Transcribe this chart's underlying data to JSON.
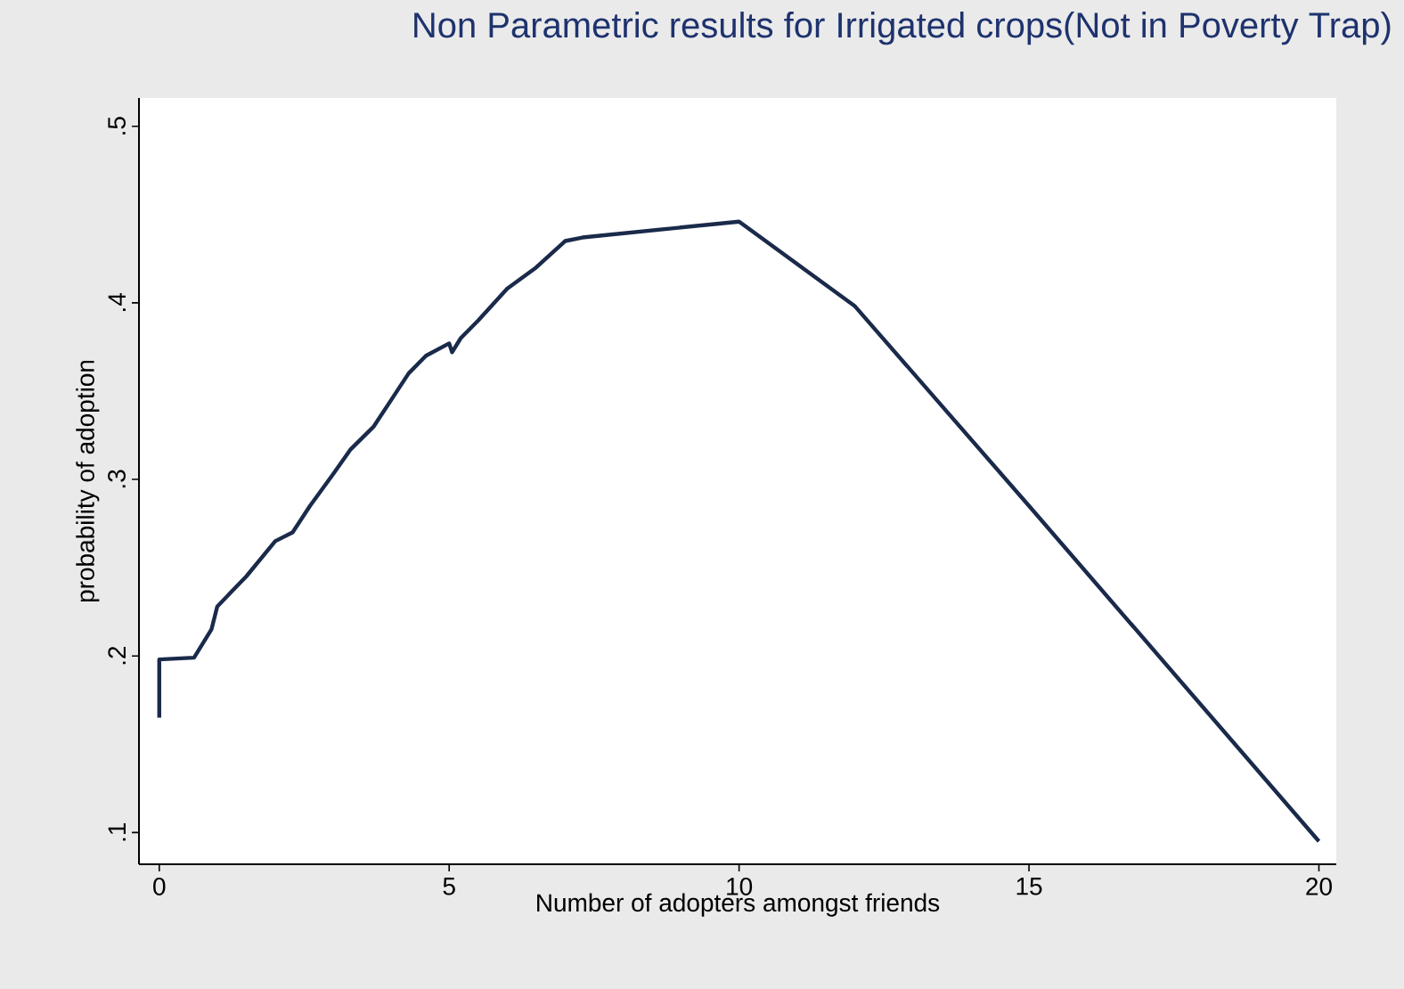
{
  "chart_data": {
    "type": "line",
    "title": "Non Parametric results for Irrigated crops(Not in Poverty Trap)",
    "xlabel": "Number of adopters amongst friends",
    "ylabel": "probability of adoption",
    "x": [
      0,
      0,
      0.6,
      0.9,
      1,
      1.5,
      2,
      2.3,
      2.6,
      3,
      3.3,
      3.7,
      4,
      4.3,
      4.6,
      5,
      5.05,
      5.2,
      5.5,
      6,
      6.5,
      7,
      7.3,
      10,
      12,
      15,
      20
    ],
    "series": [
      {
        "color": "#1a2a4a",
        "values": [
          0.165,
          0.198,
          0.199,
          0.215,
          0.228,
          0.245,
          0.265,
          0.27,
          0.285,
          0.303,
          0.317,
          0.33,
          0.345,
          0.36,
          0.37,
          0.377,
          0.372,
          0.38,
          0.39,
          0.408,
          0.42,
          0.435,
          0.437,
          0.446,
          0.398,
          0.285,
          0.095
        ]
      }
    ],
    "xlim": [
      -0.35,
      20.3
    ],
    "ylim": [
      0.082,
      0.516
    ],
    "xticks": [
      0,
      5,
      10,
      15,
      20
    ],
    "yticks": [
      {
        "value": 0.1,
        "label": ".1"
      },
      {
        "value": 0.2,
        "label": ".2"
      },
      {
        "value": 0.3,
        "label": ".3"
      },
      {
        "value": 0.4,
        "label": ".4"
      },
      {
        "value": 0.5,
        "label": ".5"
      }
    ],
    "grid": false,
    "line_style": "solid",
    "marker": "none"
  }
}
